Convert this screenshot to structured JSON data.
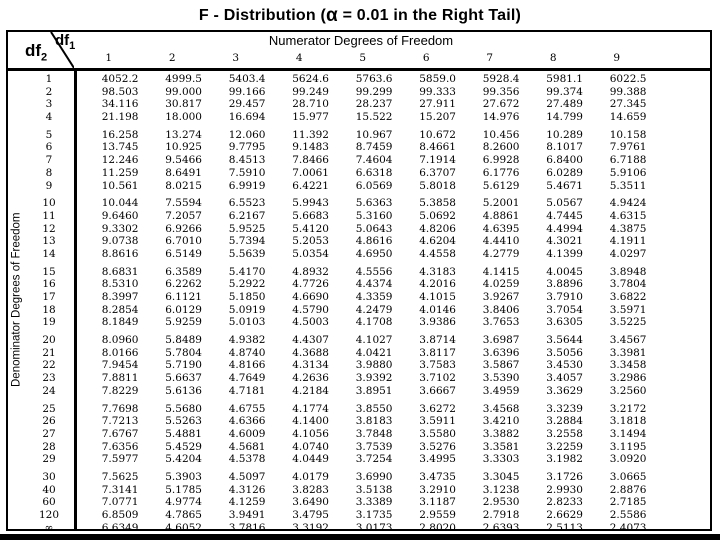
{
  "title": {
    "prefix": "F - Distribution (",
    "alpha": "α",
    "suffix": " = 0.01 in the Right Tail)"
  },
  "table": {
    "corner": {
      "row_label": "df",
      "row_sub": "2",
      "col_label": "df",
      "col_sub": "1"
    },
    "numerator_label": "Numerator Degrees of Freedom",
    "denominator_label": "Denominator Degrees of Freedom",
    "columns": [
      "1",
      "2",
      "3",
      "4",
      "5",
      "6",
      "7",
      "8",
      "9"
    ],
    "groups": [
      {
        "rows": [
          [
            "1",
            "4052.2",
            "4999.5",
            "5403.4",
            "5624.6",
            "5763.6",
            "5859.0",
            "5928.4",
            "5981.1",
            "6022.5"
          ],
          [
            "2",
            "98.503",
            "99.000",
            "99.166",
            "99.249",
            "99.299",
            "99.333",
            "99.356",
            "99.374",
            "99.388"
          ],
          [
            "3",
            "34.116",
            "30.817",
            "29.457",
            "28.710",
            "28.237",
            "27.911",
            "27.672",
            "27.489",
            "27.345"
          ],
          [
            "4",
            "21.198",
            "18.000",
            "16.694",
            "15.977",
            "15.522",
            "15.207",
            "14.976",
            "14.799",
            "14.659"
          ]
        ]
      },
      {
        "rows": [
          [
            "5",
            "16.258",
            "13.274",
            "12.060",
            "11.392",
            "10.967",
            "10.672",
            "10.456",
            "10.289",
            "10.158"
          ],
          [
            "6",
            "13.745",
            "10.925",
            "9.7795",
            "9.1483",
            "8.7459",
            "8.4661",
            "8.2600",
            "8.1017",
            "7.9761"
          ],
          [
            "7",
            "12.246",
            "9.5466",
            "8.4513",
            "7.8466",
            "7.4604",
            "7.1914",
            "6.9928",
            "6.8400",
            "6.7188"
          ],
          [
            "8",
            "11.259",
            "8.6491",
            "7.5910",
            "7.0061",
            "6.6318",
            "6.3707",
            "6.1776",
            "6.0289",
            "5.9106"
          ],
          [
            "9",
            "10.561",
            "8.0215",
            "6.9919",
            "6.4221",
            "6.0569",
            "5.8018",
            "5.6129",
            "5.4671",
            "5.3511"
          ]
        ]
      },
      {
        "rows": [
          [
            "10",
            "10.044",
            "7.5594",
            "6.5523",
            "5.9943",
            "5.6363",
            "5.3858",
            "5.2001",
            "5.0567",
            "4.9424"
          ],
          [
            "11",
            "9.6460",
            "7.2057",
            "6.2167",
            "5.6683",
            "5.3160",
            "5.0692",
            "4.8861",
            "4.7445",
            "4.6315"
          ],
          [
            "12",
            "9.3302",
            "6.9266",
            "5.9525",
            "5.4120",
            "5.0643",
            "4.8206",
            "4.6395",
            "4.4994",
            "4.3875"
          ],
          [
            "13",
            "9.0738",
            "6.7010",
            "5.7394",
            "5.2053",
            "4.8616",
            "4.6204",
            "4.4410",
            "4.3021",
            "4.1911"
          ],
          [
            "14",
            "8.8616",
            "6.5149",
            "5.5639",
            "5.0354",
            "4.6950",
            "4.4558",
            "4.2779",
            "4.1399",
            "4.0297"
          ]
        ]
      },
      {
        "rows": [
          [
            "15",
            "8.6831",
            "6.3589",
            "5.4170",
            "4.8932",
            "4.5556",
            "4.3183",
            "4.1415",
            "4.0045",
            "3.8948"
          ],
          [
            "16",
            "8.5310",
            "6.2262",
            "5.2922",
            "4.7726",
            "4.4374",
            "4.2016",
            "4.0259",
            "3.8896",
            "3.7804"
          ],
          [
            "17",
            "8.3997",
            "6.1121",
            "5.1850",
            "4.6690",
            "4.3359",
            "4.1015",
            "3.9267",
            "3.7910",
            "3.6822"
          ],
          [
            "18",
            "8.2854",
            "6.0129",
            "5.0919",
            "4.5790",
            "4.2479",
            "4.0146",
            "3.8406",
            "3.7054",
            "3.5971"
          ],
          [
            "19",
            "8.1849",
            "5.9259",
            "5.0103",
            "4.5003",
            "4.1708",
            "3.9386",
            "3.7653",
            "3.6305",
            "3.5225"
          ]
        ]
      },
      {
        "rows": [
          [
            "20",
            "8.0960",
            "5.8489",
            "4.9382",
            "4.4307",
            "4.1027",
            "3.8714",
            "3.6987",
            "3.5644",
            "3.4567"
          ],
          [
            "21",
            "8.0166",
            "5.7804",
            "4.8740",
            "4.3688",
            "4.0421",
            "3.8117",
            "3.6396",
            "3.5056",
            "3.3981"
          ],
          [
            "22",
            "7.9454",
            "5.7190",
            "4.8166",
            "4.3134",
            "3.9880",
            "3.7583",
            "3.5867",
            "3.4530",
            "3.3458"
          ],
          [
            "23",
            "7.8811",
            "5.6637",
            "4.7649",
            "4.2636",
            "3.9392",
            "3.7102",
            "3.5390",
            "3.4057",
            "3.2986"
          ],
          [
            "24",
            "7.8229",
            "5.6136",
            "4.7181",
            "4.2184",
            "3.8951",
            "3.6667",
            "3.4959",
            "3.3629",
            "3.2560"
          ]
        ]
      },
      {
        "rows": [
          [
            "25",
            "7.7698",
            "5.5680",
            "4.6755",
            "4.1774",
            "3.8550",
            "3.6272",
            "3.4568",
            "3.3239",
            "3.2172"
          ],
          [
            "26",
            "7.7213",
            "5.5263",
            "4.6366",
            "4.1400",
            "3.8183",
            "3.5911",
            "3.4210",
            "3.2884",
            "3.1818"
          ],
          [
            "27",
            "7.6767",
            "5.4881",
            "4.6009",
            "4.1056",
            "3.7848",
            "3.5580",
            "3.3882",
            "3.2558",
            "3.1494"
          ],
          [
            "28",
            "7.6356",
            "5.4529",
            "4.5681",
            "4.0740",
            "3.7539",
            "3.5276",
            "3.3581",
            "3.2259",
            "3.1195"
          ],
          [
            "29",
            "7.5977",
            "5.4204",
            "4.5378",
            "4.0449",
            "3.7254",
            "3.4995",
            "3.3303",
            "3.1982",
            "3.0920"
          ]
        ]
      },
      {
        "rows": [
          [
            "30",
            "7.5625",
            "5.3903",
            "4.5097",
            "4.0179",
            "3.6990",
            "3.4735",
            "3.3045",
            "3.1726",
            "3.0665"
          ],
          [
            "40",
            "7.3141",
            "5.1785",
            "4.3126",
            "3.8283",
            "3.5138",
            "3.2910",
            "3.1238",
            "2.9930",
            "2.8876"
          ],
          [
            "60",
            "7.0771",
            "4.9774",
            "4.1259",
            "3.6490",
            "3.3389",
            "3.1187",
            "2.9530",
            "2.8233",
            "2.7185"
          ],
          [
            "120",
            "6.8509",
            "4.7865",
            "3.9491",
            "3.4795",
            "3.1735",
            "2.9559",
            "2.7918",
            "2.6629",
            "2.5586"
          ],
          [
            "∞",
            "6.6349",
            "4.6052",
            "3.7816",
            "3.3192",
            "3.0173",
            "2.8020",
            "2.6393",
            "2.5113",
            "2.4073"
          ]
        ]
      }
    ]
  }
}
